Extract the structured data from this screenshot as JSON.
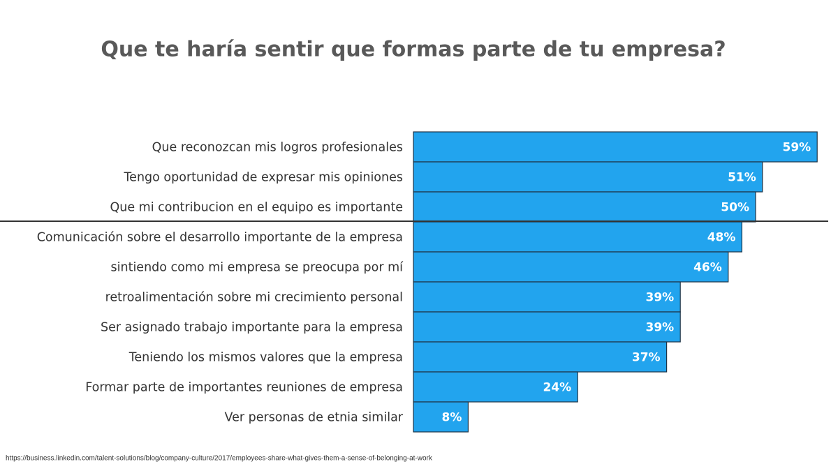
{
  "chart_data": {
    "type": "bar",
    "orientation": "horizontal",
    "title": "Que te haría sentir que formas parte de tu empresa?",
    "categories": [
      "Que reconozcan mis logros profesionales",
      "Tengo oportunidad de expresar mis opiniones",
      "Que mi contribucion en el equipo es importante",
      "Comunicación sobre el desarrollo importante de la empresa",
      "sintiendo como mi empresa se preocupa por mí",
      "retroalimentación sobre mi crecimiento personal",
      "Ser asignado trabajo importante para la empresa",
      "Teniendo los mismos valores que la empresa",
      "Formar parte de importantes reuniones de empresa",
      "Ver personas de etnia similar"
    ],
    "values": [
      59,
      51,
      50,
      48,
      46,
      39,
      39,
      37,
      24,
      8
    ],
    "value_labels": [
      "59%",
      "51%",
      "50%",
      "48%",
      "46%",
      "39%",
      "39%",
      "37%",
      "24%",
      "8%"
    ],
    "color": "#22a4ee",
    "source": "https://business.linkedin.com/talent-solutions/blog/company-culture/2017/employees-share-what-gives-them-a-sense-of-belonging-at-work"
  }
}
